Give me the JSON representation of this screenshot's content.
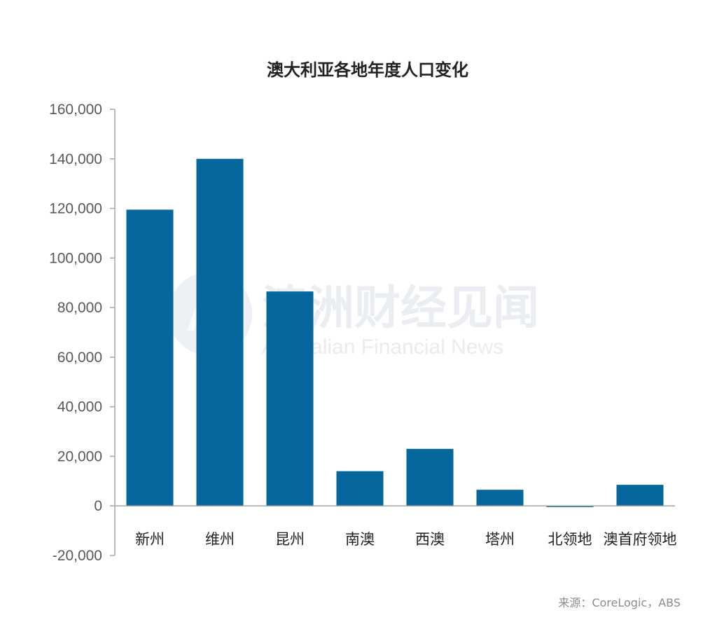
{
  "chart_data": {
    "type": "bar",
    "title": "澳大利亚各地年度人口变化",
    "categories": [
      "新州",
      "维州",
      "昆州",
      "南澳",
      "西澳",
      "塔州",
      "北领地",
      "澳首府领地"
    ],
    "values": [
      119500,
      140000,
      86500,
      14000,
      23000,
      6500,
      -500,
      8500
    ],
    "ylim": [
      -20000,
      160000
    ],
    "yticks": [
      -20000,
      0,
      20000,
      40000,
      60000,
      80000,
      100000,
      120000,
      140000,
      160000
    ],
    "ytick_labels": [
      "-20,000",
      "0",
      "20,000",
      "40,000",
      "60,000",
      "80,000",
      "100,000",
      "120,000",
      "140,000",
      "160,000"
    ],
    "bar_color": "#05679c",
    "grid": false,
    "legend": "none"
  },
  "source": "来源：CoreLogic，ABS",
  "watermark": {
    "logo_letter": "A",
    "name_cn": "澳洲财经见闻",
    "name_en": "Australian Financial News",
    "color": "#d9dfe6"
  }
}
